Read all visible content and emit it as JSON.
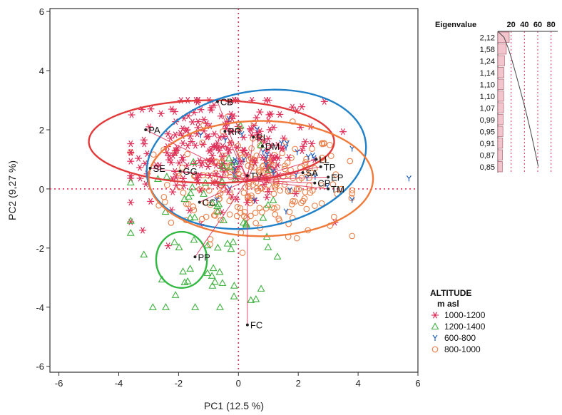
{
  "chart_data": [
    {
      "type": "scatter",
      "title": "",
      "xlabel": "PC1 (12.5 %)",
      "ylabel": "PC2 (9,27 %)",
      "xlim": [
        -6.3,
        6
      ],
      "ylim": [
        -6.2,
        6.1
      ],
      "xticks": [
        -6,
        -4,
        -2,
        0,
        2,
        4,
        6
      ],
      "yticks": [
        -6,
        -4,
        -2,
        0,
        2,
        4,
        6
      ],
      "reference_lines": {
        "x": 0,
        "y": 0,
        "color": "#e0305a",
        "style": "dotted"
      },
      "grid": false,
      "variables": [
        {
          "label": "CB",
          "x": -0.7,
          "y": 2.95
        },
        {
          "label": "PA",
          "x": -3.1,
          "y": 2.0
        },
        {
          "label": "RR",
          "x": -0.45,
          "y": 1.95
        },
        {
          "label": "RI",
          "x": 0.5,
          "y": 1.75
        },
        {
          "label": "DM",
          "x": 0.8,
          "y": 1.45
        },
        {
          "label": "SE",
          "x": -2.95,
          "y": 0.7
        },
        {
          "label": "GG",
          "x": -1.95,
          "y": 0.6
        },
        {
          "label": "TV",
          "x": 0.3,
          "y": 0.45
        },
        {
          "label": "SA",
          "x": 2.15,
          "y": 0.55
        },
        {
          "label": "LL",
          "x": 2.6,
          "y": 1.0
        },
        {
          "label": "TP",
          "x": 2.75,
          "y": 0.75
        },
        {
          "label": "EP",
          "x": 3.0,
          "y": 0.4
        },
        {
          "label": "CP",
          "x": 2.55,
          "y": 0.2
        },
        {
          "label": "TM",
          "x": 3.0,
          "y": 0.0
        },
        {
          "label": "CC",
          "x": -1.3,
          "y": -0.45
        },
        {
          "label": "PP",
          "x": -1.45,
          "y": -2.3
        },
        {
          "label": "FC",
          "x": 0.3,
          "y": -4.6
        }
      ],
      "ellipses": [
        {
          "group": "1000-1200",
          "color": "#e23a3a",
          "cx": -0.9,
          "cy": 1.6,
          "rx": 4.1,
          "ry": 1.4,
          "angle": 0
        },
        {
          "group": "600-800",
          "color": "#2080c8",
          "cx": 0.6,
          "cy": 1.0,
          "rx": 3.7,
          "ry": 2.3,
          "angle": 10
        },
        {
          "group": "800-1000",
          "color": "#f07a3a",
          "cx": 0.75,
          "cy": 0.35,
          "rx": 3.75,
          "ry": 1.95,
          "angle": 0
        },
        {
          "group": "1200-1400",
          "color": "#30b840",
          "cx": -1.9,
          "cy": -2.4,
          "rx": 0.85,
          "ry": 0.95,
          "angle": 0
        }
      ],
      "series": [
        {
          "name": "1000-1200",
          "marker": "asterisk",
          "color": "#e0305a",
          "n": 230,
          "center": [
            -0.6,
            1.3
          ],
          "spread": [
            1.7,
            0.95
          ]
        },
        {
          "name": "1200-1400",
          "marker": "triangle",
          "color": "#40b040",
          "n": 70,
          "center": [
            -0.7,
            -1.2
          ],
          "spread": [
            1.3,
            1.4
          ]
        },
        {
          "name": "600-800",
          "marker": "Y",
          "color": "#2060c0",
          "n": 35,
          "center": [
            0.8,
            0.8
          ],
          "spread": [
            1.3,
            0.7
          ]
        },
        {
          "name": "800-1000",
          "marker": "circle",
          "color": "#e8804a",
          "n": 230,
          "center": [
            0.6,
            0.2
          ],
          "spread": [
            1.5,
            0.9
          ]
        }
      ],
      "outliers": [
        {
          "series": "600-800",
          "x": 5.7,
          "y": 0.35
        },
        {
          "series": "1000-1200",
          "x": -3.2,
          "y": -1.4
        }
      ]
    },
    {
      "type": "bar",
      "orientation": "horizontal",
      "title": "Eigenvalue",
      "xticks": [
        20,
        40,
        60,
        80
      ],
      "categories": [
        "2,12",
        "1,58",
        "1,24",
        "1,14",
        "1,10",
        "1,10",
        "1,07",
        "0,99",
        "0,95",
        "0,91",
        "0,87",
        "0,85"
      ],
      "values": [
        2.12,
        1.58,
        1.24,
        1.14,
        1.1,
        1.1,
        1.07,
        0.99,
        0.95,
        0.91,
        0.87,
        0.85
      ],
      "bar_color": "#f2c4cc",
      "cumulative_line": true
    }
  ],
  "legend": {
    "title_line1": "ALTITUDE",
    "title_line2": "m asl",
    "items": [
      {
        "label": "1000-1200",
        "marker": "asterisk",
        "color": "#e0305a"
      },
      {
        "label": "1200-1400",
        "marker": "triangle",
        "color": "#40b040"
      },
      {
        "label": "600-800",
        "marker": "Y",
        "color": "#2060c0"
      },
      {
        "label": "800-1000",
        "marker": "circle",
        "color": "#e8804a"
      }
    ],
    "placement": "right"
  }
}
